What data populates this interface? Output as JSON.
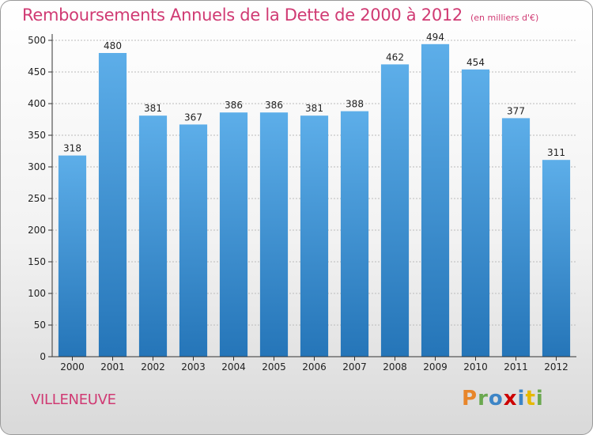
{
  "title": "Remboursements Annuels de la Dette de 2000 à 2012",
  "unit": "(en milliers d'€)",
  "commune": "VILLENEUVE",
  "brand": {
    "letters": [
      "P",
      "r",
      "o",
      "x",
      "i",
      "t",
      "i"
    ],
    "colors": [
      "#e8862a",
      "#6aa84f",
      "#3d85c6",
      "#cc0000",
      "#3d85c6",
      "#e6b800",
      "#6aa84f"
    ]
  },
  "colors": {
    "title": "#d03a73",
    "bar_top": "#5daee9",
    "bar_bottom": "#2575b8",
    "axis": "#333333",
    "grid": "#bbbbbb"
  },
  "chart_data": {
    "type": "bar",
    "categories": [
      "2000",
      "2001",
      "2002",
      "2003",
      "2004",
      "2005",
      "2006",
      "2007",
      "2008",
      "2009",
      "2010",
      "2011",
      "2012"
    ],
    "values": [
      318,
      480,
      381,
      367,
      386,
      386,
      381,
      388,
      462,
      494,
      454,
      377,
      311
    ],
    "yticks": [
      0,
      50,
      100,
      150,
      200,
      250,
      300,
      350,
      400,
      450,
      500
    ],
    "ylim": [
      0,
      500
    ],
    "grid": true,
    "title": "Remboursements Annuels de la Dette de 2000 à 2012",
    "xlabel": "",
    "ylabel": ""
  }
}
